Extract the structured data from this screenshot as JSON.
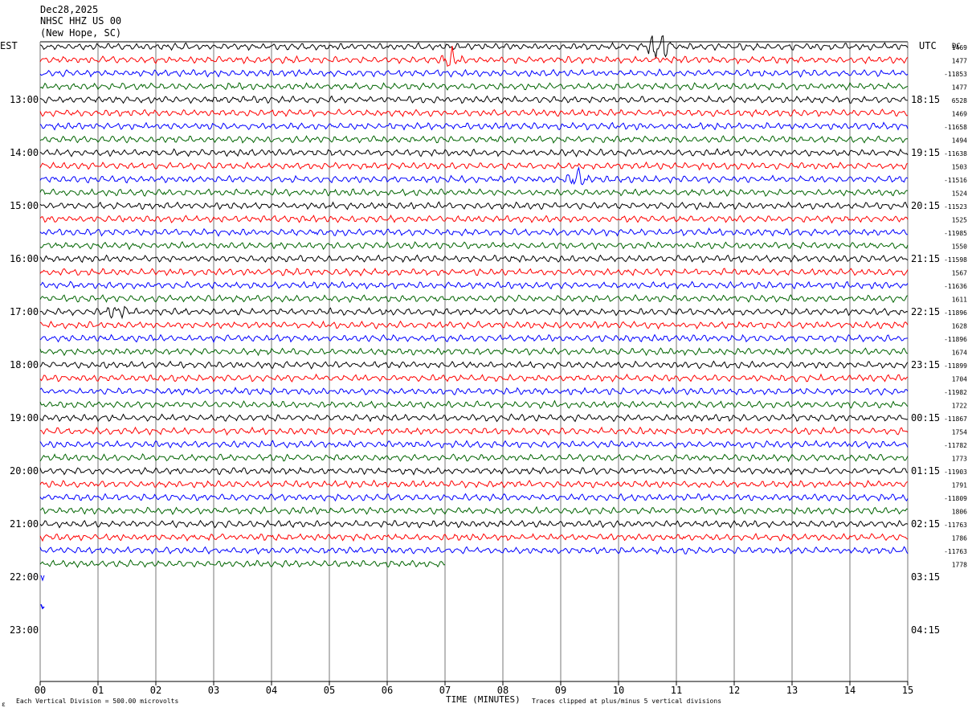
{
  "header": {
    "date": "Dec28,2025",
    "station": "NHSC HHZ US 00",
    "location": "(New Hope, SC)",
    "left_zone": "EST",
    "right_zone": "UTC",
    "dc_label": "DC"
  },
  "footer": {
    "scale_note": "Each Vertical Division =  500.00 microvolts",
    "clip_note": "Traces clipped at plus/minus 5 vertical divisions",
    "corner_mark": "ε"
  },
  "chart_data": {
    "type": "line",
    "title": "NHSC HHZ US 00",
    "xlabel": "TIME (MINUTES)",
    "ylabel": "",
    "x_ticks": [
      "00",
      "01",
      "02",
      "03",
      "04",
      "05",
      "06",
      "07",
      "08",
      "09",
      "10",
      "11",
      "12",
      "13",
      "14",
      "15"
    ],
    "xlim": [
      0,
      15
    ],
    "grid": true,
    "minutes_per_line": 15,
    "trace_colors": [
      "#000000",
      "#ff0000",
      "#0000ff",
      "#006400"
    ],
    "left_time_labels": [
      "13:00",
      "14:00",
      "15:00",
      "16:00",
      "17:00",
      "18:00",
      "19:00",
      "20:00",
      "21:00",
      "22:00",
      "23:00"
    ],
    "right_time_labels": [
      "18:15",
      "19:15",
      "20:15",
      "21:15",
      "22:15",
      "23:15",
      "00:15",
      "01:15",
      "02:15",
      "03:15",
      "04:15"
    ],
    "dc_offsets": [
      "1469",
      "1477",
      "-11853",
      "1477",
      "6528",
      "1469",
      "-11658",
      "1494",
      "-11638",
      "1503",
      "-11516",
      "1524",
      "-11523",
      "1525",
      "-11985",
      "1550",
      "-11598",
      "1567",
      "-11636",
      "1611",
      "-11896",
      "1628",
      "-11896",
      "1674",
      "-11899",
      "1704",
      "-11982",
      "1722",
      "-11867",
      "1754",
      "-11782",
      "1773",
      "-11903",
      "1791",
      "-11809",
      "1806",
      "-11763",
      "1786",
      "-11763",
      "1778"
    ],
    "full_traces": 39,
    "partial_trace_end_minute": 7.0,
    "events": [
      {
        "trace": 0,
        "minute": 10.7,
        "amplitude": 3.0
      },
      {
        "trace": 1,
        "minute": 7.1,
        "amplitude": 1.4
      },
      {
        "trace": 10,
        "minute": 9.3,
        "amplitude": 1.3
      },
      {
        "trace": 20,
        "minute": 1.35,
        "amplitude": 1.2
      }
    ]
  }
}
